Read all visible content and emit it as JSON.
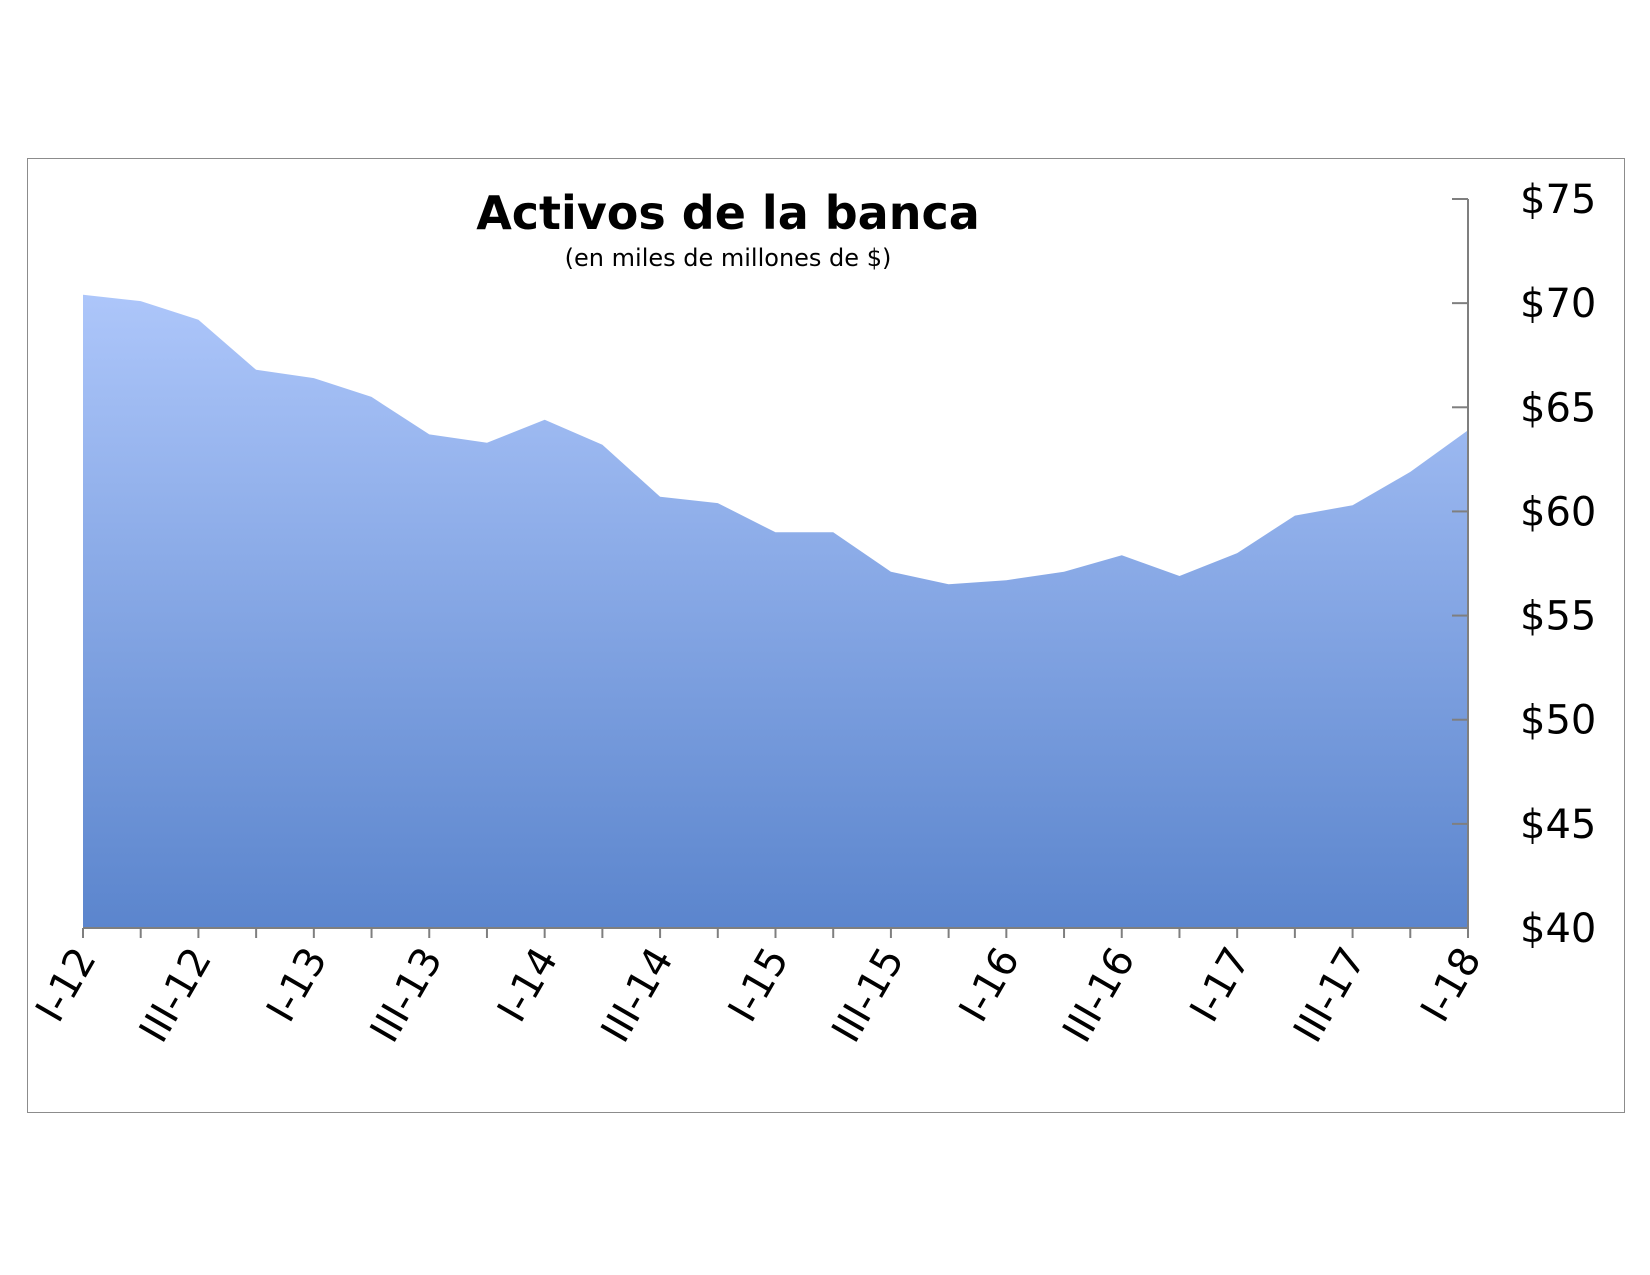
{
  "chart_data": {
    "type": "area",
    "title": "Activos de la banca",
    "subtitle": "(en miles de millones de $)",
    "xlabel": "",
    "ylabel": "",
    "y_axis_position": "right",
    "ylim": [
      40,
      75
    ],
    "yticks": [
      40,
      45,
      50,
      55,
      60,
      65,
      70,
      75
    ],
    "ytick_labels": [
      "$40",
      "$45",
      "$50",
      "$55",
      "$60",
      "$65",
      "$70",
      "$75"
    ],
    "x": [
      "I-12",
      "II-12",
      "III-12",
      "IV-12",
      "I-13",
      "II-13",
      "III-13",
      "IV-13",
      "I-14",
      "II-14",
      "III-14",
      "IV-14",
      "I-15",
      "II-15",
      "III-15",
      "IV-15",
      "I-16",
      "II-16",
      "III-16",
      "IV-16",
      "I-17",
      "II-17",
      "III-17",
      "IV-17",
      "I-18"
    ],
    "xtick_labels": [
      "I-12",
      "III-12",
      "I-13",
      "III-13",
      "I-14",
      "III-14",
      "I-15",
      "III-15",
      "I-16",
      "III-16",
      "I-17",
      "III-17",
      "I-18"
    ],
    "values": [
      70.4,
      70.1,
      69.2,
      66.8,
      66.4,
      65.5,
      63.7,
      63.3,
      64.4,
      63.2,
      60.7,
      60.4,
      59.0,
      59.0,
      57.1,
      56.5,
      56.7,
      57.1,
      57.9,
      56.9,
      58.0,
      59.8,
      60.3,
      61.9,
      63.9
    ],
    "grid": false,
    "legend": "none",
    "colors": {
      "fill_top": "#adc6fa",
      "fill_bottom": "#5b85cd",
      "axis": "#7f7f7f"
    }
  }
}
